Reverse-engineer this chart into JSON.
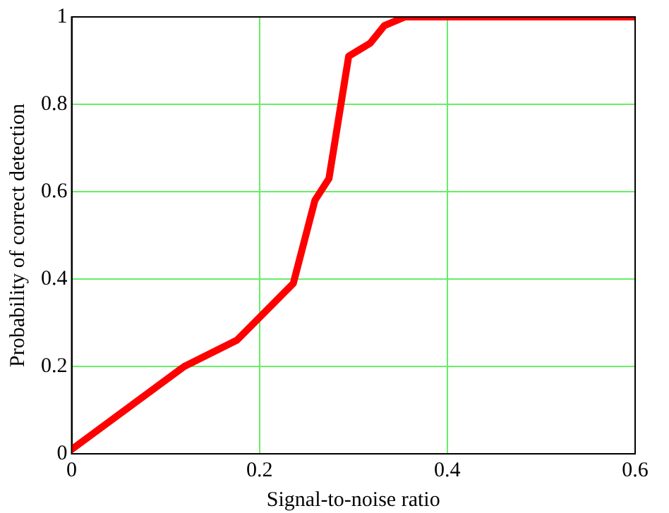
{
  "chart_data": {
    "type": "line",
    "xlabel": "Signal-to-noise ratio",
    "ylabel": "Probability of correct detection",
    "x": [
      0,
      0.12,
      0.176,
      0.236,
      0.259,
      0.274,
      0.295,
      0.318,
      0.333,
      0.355,
      0.6
    ],
    "series": [
      {
        "color": "#ff0000",
        "values": [
          0.01,
          0.2,
          0.26,
          0.39,
          0.58,
          0.63,
          0.91,
          0.94,
          0.98,
          1,
          1
        ]
      }
    ],
    "xlim": [
      0,
      0.6
    ],
    "xticks": [
      0,
      0.2,
      0.4,
      0.6
    ],
    "ylim": [
      0,
      1
    ],
    "yticks": [
      0,
      0.2,
      0.4,
      0.6,
      0.8,
      1
    ],
    "grid": true,
    "legend": false,
    "marker": "none",
    "line_style": "solid"
  }
}
